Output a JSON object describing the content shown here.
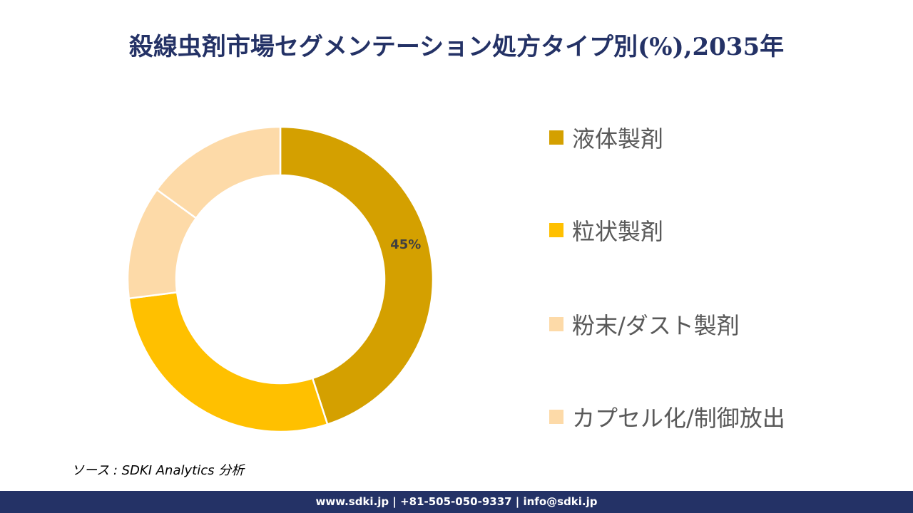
{
  "title": "殺線虫剤市場セグメンテーション処方タイプ別(%),2035年",
  "chart_data": {
    "type": "pie",
    "donut": true,
    "title": "殺線虫剤市場セグメンテーション処方タイプ別(%),2035年",
    "categories": [
      "液体製剤",
      "粒状製剤",
      "粉末/ダスト製剤",
      "カプセル化/制御放出"
    ],
    "values": [
      45,
      28,
      12,
      15
    ],
    "colors": [
      "#D4A000",
      "#FFC000",
      "#FDDAA8",
      "#FDDAA8"
    ],
    "data_labels": [
      "45%",
      "",
      "",
      ""
    ],
    "legend_position": "right"
  },
  "source": "ソース : SDKI Analytics 分析",
  "footer": "www.sdki.jp | +81-505-050-9337 | info@sdki.jp"
}
